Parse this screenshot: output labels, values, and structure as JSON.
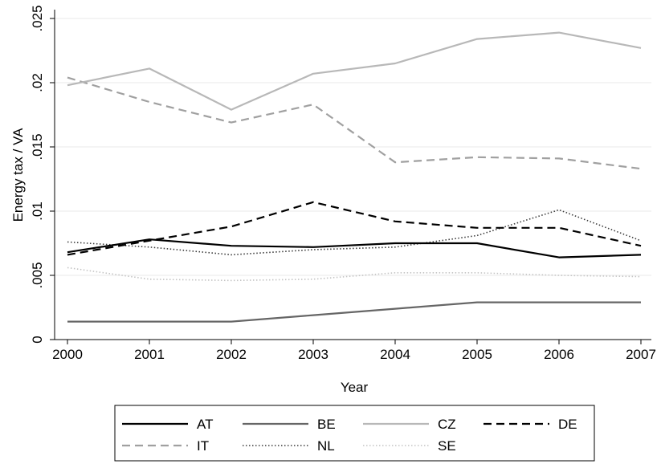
{
  "chart_data": {
    "type": "line",
    "title": "",
    "xlabel": "Year",
    "ylabel": "Energy tax / VA",
    "x": [
      2000,
      2001,
      2002,
      2003,
      2004,
      2005,
      2006,
      2007
    ],
    "xlim": [
      2000,
      2007
    ],
    "ylim": [
      0,
      0.025
    ],
    "yticks": [
      0,
      0.005,
      0.01,
      0.015,
      0.02,
      0.025
    ],
    "ytick_labels": [
      "0",
      ".005",
      ".01",
      ".015",
      ".02",
      ".025"
    ],
    "xtick_labels": [
      "2000",
      "2001",
      "2002",
      "2003",
      "2004",
      "2005",
      "2006",
      "2007"
    ],
    "grid": true,
    "legend_position": "bottom",
    "series": [
      {
        "name": "AT",
        "color": "#000000",
        "style": "solid",
        "values": [
          0.0068,
          0.0078,
          0.0073,
          0.0072,
          0.0075,
          0.0075,
          0.0064,
          0.0066
        ]
      },
      {
        "name": "BE",
        "color": "#666666",
        "style": "solid",
        "values": [
          0.0014,
          0.0014,
          0.0014,
          0.0019,
          0.0024,
          0.0029,
          0.0029,
          0.0029
        ]
      },
      {
        "name": "CZ",
        "color": "#b8b8b8",
        "style": "solid",
        "values": [
          0.0198,
          0.0211,
          0.0179,
          0.0207,
          0.0215,
          0.0234,
          0.0239,
          0.0227
        ]
      },
      {
        "name": "DE",
        "color": "#000000",
        "style": "dash",
        "values": [
          0.0066,
          0.0077,
          0.0088,
          0.0107,
          0.0092,
          0.0087,
          0.0087,
          0.0073
        ]
      },
      {
        "name": "IT",
        "color": "#a0a0a0",
        "style": "dash",
        "values": [
          0.0204,
          0.0185,
          0.0169,
          0.0183,
          0.0138,
          0.0142,
          0.0141,
          0.0133
        ]
      },
      {
        "name": "NL",
        "color": "#3c3c3c",
        "style": "dot",
        "values": [
          0.0076,
          0.0072,
          0.0066,
          0.007,
          0.0072,
          0.0081,
          0.0101,
          0.0077
        ]
      },
      {
        "name": "SE",
        "color": "#c4c4c4",
        "style": "dot",
        "values": [
          0.0056,
          0.0047,
          0.0046,
          0.0047,
          0.0052,
          0.0052,
          0.005,
          0.0049
        ]
      }
    ]
  }
}
